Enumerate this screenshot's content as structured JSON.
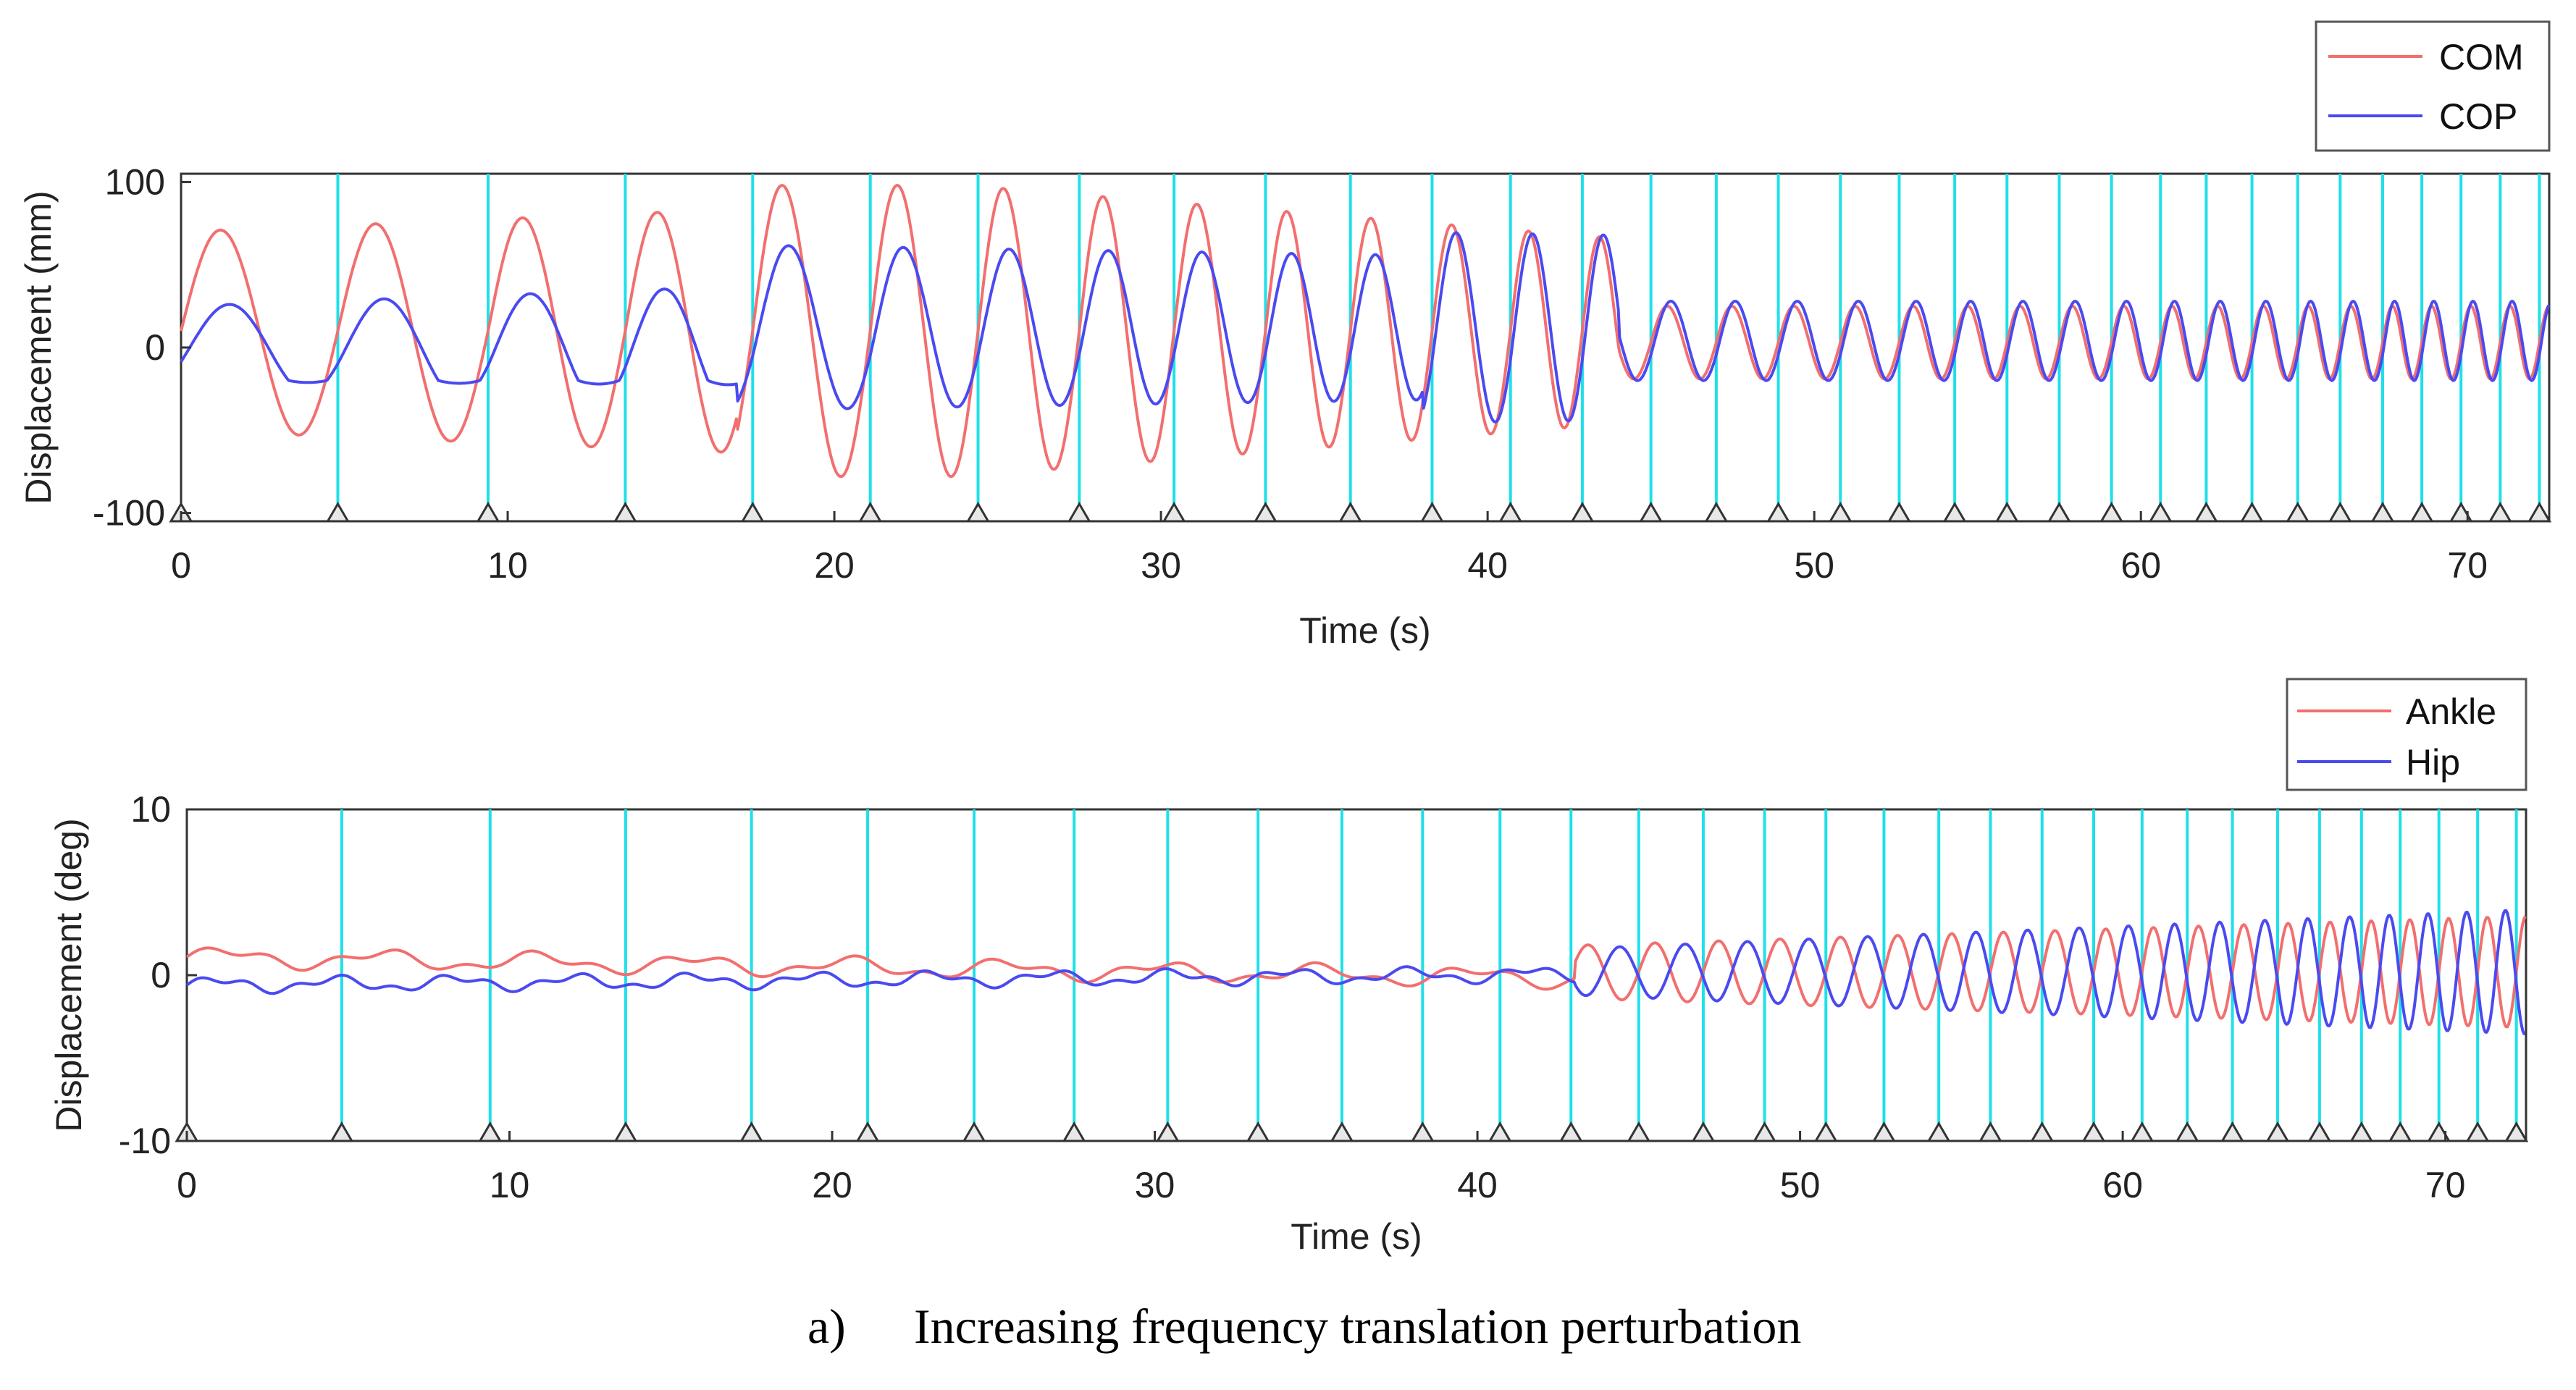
{
  "figure": {
    "caption_label": "a)",
    "caption_text": "Increasing frequency translation perturbation"
  },
  "colors": {
    "series_a": "#f26f6f",
    "series_b": "#4a4af0",
    "event_line": "#1ee0e8",
    "axis": "#333333",
    "marker_stroke": "#333333",
    "marker_fill": "#e8e8e8"
  },
  "chart_data": [
    {
      "type": "line",
      "name": "top",
      "ylabel": "Displacement (mm)",
      "xlabel": "Time (s)",
      "xlim": [
        0,
        72.5
      ],
      "ylim": [
        -105,
        105
      ],
      "xticks": [
        0,
        10,
        20,
        30,
        40,
        50,
        60,
        70
      ],
      "yticks": [
        -100,
        0,
        100
      ],
      "legend_position": "top-right",
      "event_times": [
        0,
        4.8,
        9.4,
        13.6,
        17.5,
        21.1,
        24.4,
        27.5,
        30.4,
        33.2,
        35.8,
        38.3,
        40.7,
        42.9,
        45.0,
        47.0,
        48.9,
        50.8,
        52.6,
        54.3,
        55.9,
        57.5,
        59.1,
        60.6,
        62.0,
        63.4,
        64.8,
        66.1,
        67.4,
        68.6,
        69.8,
        71.0,
        72.2
      ],
      "series": [
        {
          "name": "COM",
          "color_key": "series_a",
          "waveform": "com"
        },
        {
          "name": "COP",
          "color_key": "series_b",
          "waveform": "cop"
        }
      ]
    },
    {
      "type": "line",
      "name": "bottom",
      "ylabel": "Displacement (deg)",
      "xlabel": "Time (s)",
      "xlim": [
        0,
        72.5
      ],
      "ylim": [
        -10,
        10
      ],
      "xticks": [
        0,
        10,
        20,
        30,
        40,
        50,
        60,
        70
      ],
      "yticks": [
        -10,
        0,
        10
      ],
      "legend_position": "top-right",
      "event_times": [
        0,
        4.8,
        9.4,
        13.6,
        17.5,
        21.1,
        24.4,
        27.5,
        30.4,
        33.2,
        35.8,
        38.3,
        40.7,
        42.9,
        45.0,
        47.0,
        48.9,
        50.8,
        52.6,
        54.3,
        55.9,
        57.5,
        59.1,
        60.6,
        62.0,
        63.4,
        64.8,
        66.1,
        67.4,
        68.6,
        69.8,
        71.0,
        72.2
      ],
      "series": [
        {
          "name": "Ankle",
          "color_key": "series_a",
          "waveform": "ankle"
        },
        {
          "name": "Hip",
          "color_key": "series_b",
          "waveform": "hip"
        }
      ]
    }
  ]
}
